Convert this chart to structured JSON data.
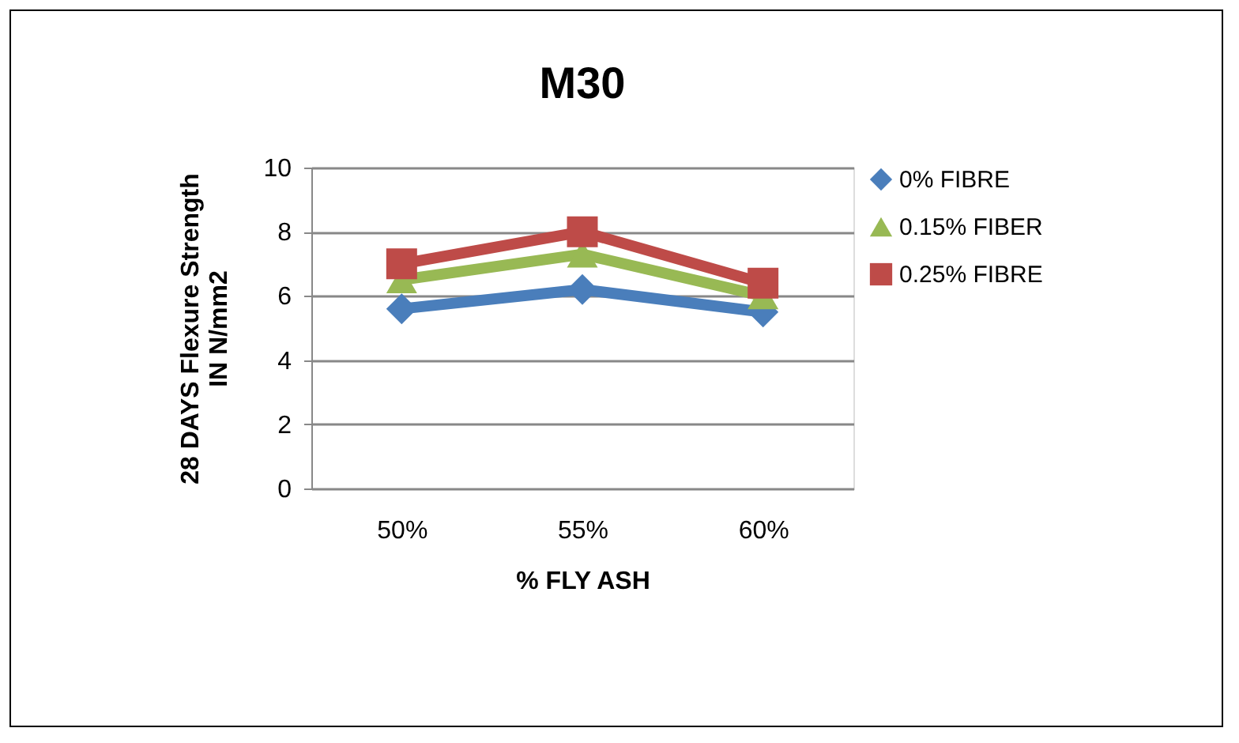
{
  "chart_data": {
    "type": "line",
    "title": "M30",
    "xlabel": "% FLY ASH",
    "ylabel": "28 DAYS Flexure  Strength IN N/mm2",
    "categories": [
      "50%",
      "55%",
      "60%"
    ],
    "series": [
      {
        "name": "0% FIBRE",
        "color": "#4a7ebb",
        "marker": "diamond",
        "values": [
          5.6,
          6.2,
          5.5
        ]
      },
      {
        "name": "0.15% FIBER",
        "color": "#98b954",
        "marker": "triangle",
        "values": [
          6.5,
          7.3,
          6.0
        ]
      },
      {
        "name": "0.25% FIBRE",
        "color": "#be4b48",
        "marker": "square",
        "values": [
          7.0,
          8.0,
          6.4
        ]
      }
    ],
    "ylim": [
      0,
      10
    ],
    "yticks": [
      0,
      2,
      4,
      6,
      8,
      10
    ],
    "grid": "y",
    "legend": "right"
  }
}
